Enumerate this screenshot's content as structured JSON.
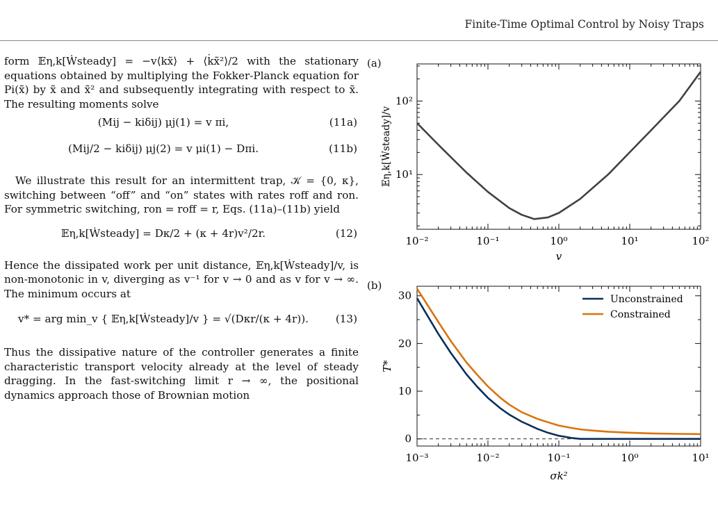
{
  "header": {
    "running_title": "Finite-Time Optimal Control by Noisy Traps"
  },
  "paragraphs": {
    "p1": "form 𝔼η,k[Ẇsteady] = −v⟨kx̃⟩ + ⟨k̇x̃²⟩/2 with the stationary equations obtained by multiplying the Fokker-Planck equation for Pi(x̃) by x̃ and x̃² and subsequently integrating with respect to x̃. The resulting moments solve",
    "p2": "We illustrate this result for an intermittent trap, 𝒦 = {0, κ}, switching between “off” and “on” states with rates roff and ron. For symmetric switching, ron = roff = r, Eqs. (11a)–(11b) yield",
    "p3": "Hence the dissipated work per unit distance, 𝔼η,k[Ẇsteady]/v, is non-monotonic in v, diverging as v⁻¹ for v → 0 and as v for v → ∞. The minimum occurs at",
    "p4": "Thus the dissipative nature of the controller generates a finite characteristic transport velocity already at the level of steady dragging. In the fast-switching limit r → ∞, the positional dynamics approach those of Brownian motion"
  },
  "equations": {
    "eq11a": {
      "body": "(Mij − kiδij) μj(1) = v πi,",
      "number": "(11a)"
    },
    "eq11b": {
      "body": "(Mij/2 − kiδij) μj(2) = v μi(1) − Dπi.",
      "number": "(11b)"
    },
    "eq12": {
      "body": "𝔼η,k[Ẇsteady] = Dκ/2 + (κ + 4r)v²/2r.",
      "number": "(12)"
    },
    "eq13": {
      "body": "v* = arg min_v { 𝔼η,k[Ẇsteady]/v } = √(Dκr/(κ + 4r)).",
      "number": "(13)"
    }
  },
  "figure": {
    "panel_a_label": "(a)",
    "panel_b_label": "(b)"
  },
  "chart_data": [
    {
      "type": "line",
      "panel": "(a)",
      "xlabel": "v",
      "ylabel": "𝔼η,k[Ẇsteady]/v",
      "xscale": "log",
      "yscale": "log",
      "xlim": [
        0.01,
        100
      ],
      "ylim": [
        1.8,
        320
      ],
      "xticks": [
        "10⁻²",
        "10⁻¹",
        "10⁰",
        "10¹",
        "10²"
      ],
      "yticks": [
        "10¹",
        "10²"
      ],
      "grid": false,
      "color": "#404040",
      "series": [
        {
          "x": [
            0.01,
            0.02,
            0.05,
            0.1,
            0.2,
            0.3,
            0.45,
            0.7,
            1.0,
            2.0,
            5.0,
            10.0,
            20.0,
            50.0,
            100.0
          ],
          "values": [
            50.2,
            25.4,
            10.6,
            5.8,
            3.5,
            2.83,
            2.48,
            2.61,
            3.0,
            4.66,
            10.1,
            20.1,
            40.0,
            100.0,
            250.0
          ]
        }
      ]
    },
    {
      "type": "line",
      "panel": "(b)",
      "xlabel": "σk²",
      "ylabel": "T*",
      "xscale": "log",
      "xlim": [
        0.001,
        10
      ],
      "ylim": [
        -1.5,
        32
      ],
      "xticks": [
        "10⁻³",
        "10⁻²",
        "10⁻¹",
        "10⁰",
        "10¹"
      ],
      "yticks": [
        "0",
        "10",
        "20",
        "30"
      ],
      "grid": false,
      "legend": "top-right",
      "reference_line": {
        "y": 0,
        "style": "dashed"
      },
      "series": [
        {
          "name": "Unconstrained",
          "color": "#0b2f5b",
          "x": [
            0.001,
            0.002,
            0.003,
            0.005,
            0.007,
            0.01,
            0.015,
            0.02,
            0.03,
            0.05,
            0.07,
            0.1,
            0.15,
            0.2,
            0.5,
            1,
            2,
            5,
            10
          ],
          "values": [
            29.5,
            22.0,
            18.0,
            13.5,
            11.0,
            8.6,
            6.4,
            5.1,
            3.6,
            2.1,
            1.3,
            0.65,
            0.2,
            0,
            0,
            0,
            0,
            0,
            0
          ]
        },
        {
          "name": "Constrained",
          "color": "#d9730f",
          "x": [
            0.001,
            0.002,
            0.003,
            0.005,
            0.007,
            0.01,
            0.015,
            0.02,
            0.03,
            0.05,
            0.07,
            0.1,
            0.15,
            0.2,
            0.3,
            0.5,
            1,
            2,
            5,
            10
          ],
          "values": [
            31.5,
            24.5,
            20.5,
            16.0,
            13.5,
            11.0,
            8.6,
            7.2,
            5.6,
            4.2,
            3.5,
            2.8,
            2.3,
            2.0,
            1.75,
            1.5,
            1.3,
            1.15,
            1.05,
            1.0
          ]
        }
      ]
    }
  ]
}
